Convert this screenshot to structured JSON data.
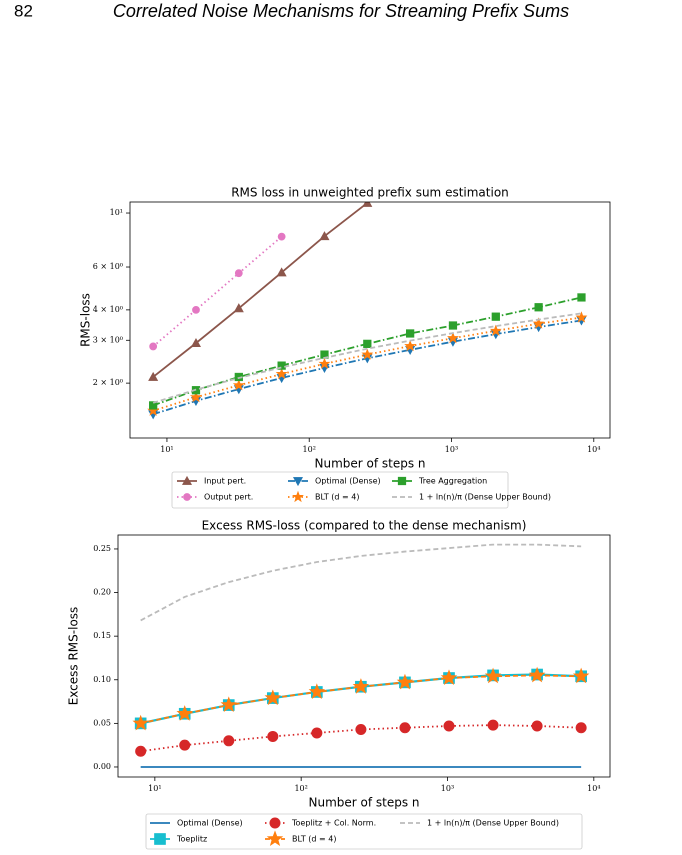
{
  "page": {
    "number": "82",
    "title": "Correlated Noise Mechanisms for Streaming Prefix Sums"
  },
  "chart_data": [
    {
      "type": "line",
      "title": "RMS loss in unweighted prefix sum estimation",
      "x_label": "Number of steps n",
      "y_label": "RMS-loss",
      "log_x": true,
      "log_y": true,
      "x": [
        8,
        16,
        32,
        64,
        128,
        256,
        512,
        1024,
        2048,
        4096,
        8192
      ],
      "xlim": [
        5.5,
        13000
      ],
      "ylim": [
        1.19,
        11.1
      ],
      "xticks": [
        {
          "value": 10,
          "label": "10¹"
        },
        {
          "value": 100,
          "label": "10²"
        },
        {
          "value": 1000,
          "label": "10³"
        },
        {
          "value": 10000,
          "label": "10⁴"
        }
      ],
      "yticks": [
        {
          "value": 10,
          "label": "10¹"
        },
        {
          "value": 6,
          "label": "6 × 10⁰"
        },
        {
          "value": 4,
          "label": "4 × 10⁰"
        },
        {
          "value": 3,
          "label": "3 × 10⁰"
        },
        {
          "value": 2,
          "label": "2 × 10⁰"
        }
      ],
      "series": [
        {
          "name": "Input pert.",
          "color": "#8c564b",
          "linestyle": "solid",
          "marker": "triangle-up",
          "values": [
            2.12,
            2.92,
            4.06,
            5.7,
            8.03,
            11.0,
            null,
            null,
            null,
            null,
            null
          ]
        },
        {
          "name": "Output pert.",
          "color": "#e377c2",
          "linestyle": "dotted",
          "marker": "circle",
          "values": [
            2.83,
            4.0,
            5.66,
            8.0,
            null,
            null,
            null,
            null,
            null,
            null,
            null
          ]
        },
        {
          "name": "Optimal (Dense)",
          "color": "#1f77b4",
          "linestyle": "dash-dot",
          "marker": "triangle-down",
          "values": [
            1.49,
            1.69,
            1.89,
            2.1,
            2.31,
            2.53,
            2.74,
            2.96,
            3.18,
            3.4,
            3.62
          ]
        },
        {
          "name": "BLT (d = 4)",
          "color": "#ff7f0e",
          "linestyle": "dotted",
          "marker": "star",
          "values": [
            1.54,
            1.75,
            1.96,
            2.18,
            2.4,
            2.62,
            2.84,
            3.06,
            3.28,
            3.51,
            3.72
          ]
        },
        {
          "name": "Tree Aggregation",
          "color": "#2ca02c",
          "linestyle": "dash-dot",
          "marker": "square",
          "values": [
            1.62,
            1.87,
            2.12,
            2.36,
            2.62,
            2.9,
            3.2,
            3.45,
            3.75,
            4.1,
            4.5
          ]
        },
        {
          "name": "1 + ln(n)/π (Dense Upper Bound)",
          "color": "#bbbbbb",
          "linestyle": "dashed",
          "marker": "none",
          "values": [
            1.66,
            1.88,
            2.1,
            2.32,
            2.54,
            2.77,
            2.99,
            3.21,
            3.43,
            3.65,
            3.87
          ]
        }
      ]
    },
    {
      "type": "line",
      "title": "Excess RMS-loss (compared to the dense mechanism)",
      "x_label": "Number of steps n",
      "y_label": "Excess RMS-loss",
      "log_x": true,
      "log_y": false,
      "x": [
        8,
        16,
        32,
        64,
        128,
        256,
        512,
        1024,
        2048,
        4096,
        8192
      ],
      "xlim": [
        5.6,
        12900
      ],
      "ylim": [
        -0.0115,
        0.266
      ],
      "xticks": [
        {
          "value": 10,
          "label": "10¹"
        },
        {
          "value": 100,
          "label": "10²"
        },
        {
          "value": 1000,
          "label": "10³"
        },
        {
          "value": 10000,
          "label": "10⁴"
        }
      ],
      "yticks": [
        {
          "value": 0,
          "label": "0.00"
        },
        {
          "value": 0.05,
          "label": "0.05"
        },
        {
          "value": 0.1,
          "label": "0.10"
        },
        {
          "value": 0.15,
          "label": "0.15"
        },
        {
          "value": 0.2,
          "label": "0.20"
        },
        {
          "value": 0.25,
          "label": "0.25"
        }
      ],
      "series": [
        {
          "name": "Optimal (Dense)",
          "color": "#1f77b4",
          "linestyle": "solid",
          "marker": "none",
          "values": [
            0,
            0,
            0,
            0,
            0,
            0,
            0,
            0,
            0,
            0,
            0
          ]
        },
        {
          "name": "Toeplitz",
          "color": "#17becf",
          "linestyle": "solid",
          "marker": "square",
          "values": [
            0.05,
            0.061,
            0.071,
            0.079,
            0.086,
            0.092,
            0.097,
            0.102,
            0.105,
            0.106,
            0.104
          ]
        },
        {
          "name": "Toeplitz + Col. Norm.",
          "color": "#d62728",
          "linestyle": "dotted",
          "marker": "circle",
          "values": [
            0.018,
            0.025,
            0.03,
            0.035,
            0.039,
            0.043,
            0.045,
            0.047,
            0.048,
            0.047,
            0.045
          ]
        },
        {
          "name": "BLT (d = 4)",
          "color": "#ff7f0e",
          "linestyle": "dashed",
          "marker": "star",
          "values": [
            0.05,
            0.061,
            0.071,
            0.079,
            0.086,
            0.092,
            0.097,
            0.102,
            0.104,
            0.105,
            0.104
          ]
        },
        {
          "name": "1 + ln(n)/π (Dense Upper Bound)",
          "color": "#bbbbbb",
          "linestyle": "dashed",
          "marker": "none",
          "values": [
            0.168,
            0.195,
            0.212,
            0.225,
            0.235,
            0.242,
            0.247,
            0.251,
            0.255,
            0.255,
            0.253
          ]
        }
      ]
    }
  ]
}
